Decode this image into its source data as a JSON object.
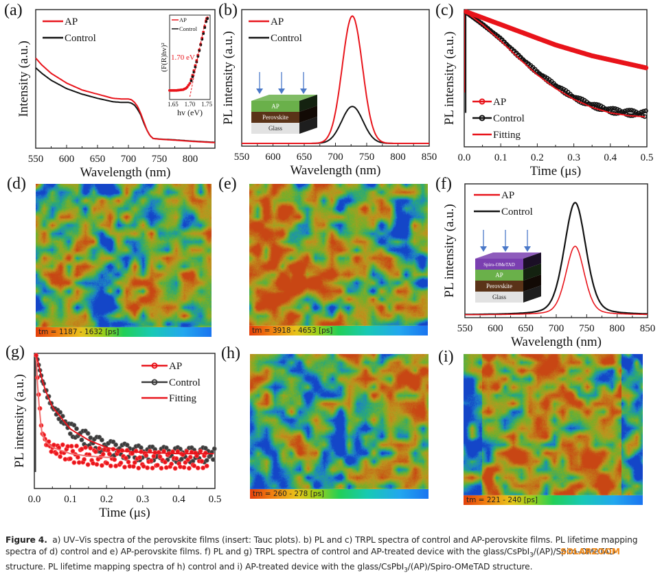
{
  "figure": {
    "number_label": "Figure 4.",
    "caption": [
      {
        "t": "a) UV–Vis spectra of the perovskite films (insert: Tauc plots). b) PL and c) TRPL spectra of control and AP-perovskite films. PL lifetime mapping "
      },
      {
        "t": "spectra of d) control and e) AP-perovskite films. f) PL and g) TRPL spectra of control and AP-treated device with the glass/CsPbI"
      },
      {
        "t": "structure. PL lifetime mapping spectra of h) control and i) AP-treated device with the glass/CsPbI"
      }
    ],
    "caption_line1": "a) UV–Vis spectra of the perovskite films (insert: Tauc plots). b) PL and c) TRPL spectra of control and AP-perovskite films. PL lifetime mapping",
    "caption_line2a": "spectra of d) control and e) AP-perovskite films. f) PL and g) TRPL spectra of control and AP-treated device with the glass/CsPbI",
    "caption_line2b": "/(AP)/Spiro-OMeTAD",
    "caption_line3a": "structure. PL lifetime mapping spectra of h) control and i) AP-treated device with the glass/CsPbI",
    "caption_line3b": "/(AP)/Spiro-OMeTAD structure.",
    "subscript": "3",
    "watermark": "SOLARZOOM"
  },
  "panel_labels": [
    "(a)",
    "(b)",
    "(c)",
    "(d)",
    "(e)",
    "(f)",
    "(g)",
    "(h)",
    "(i)"
  ],
  "colors": {
    "ap": "#e8141b",
    "control": "#111111",
    "control_g": "#3a3a3a",
    "fit": "#e8141b",
    "arrow": "#4a78c8"
  },
  "maps": {
    "d": {
      "label": "tm = 1187 - 1632 [ps]"
    },
    "e": {
      "label": "tm = 3918 - 4653 [ps]"
    },
    "h": {
      "label": "tm = 260 - 278 [ps]"
    },
    "i": {
      "label": "tm = 221 - 240 [ps]"
    }
  },
  "chart_data": [
    {
      "id": "a",
      "type": "line",
      "title": "",
      "xlabel": "Wavelength (nm)",
      "ylabel": "Intensity (a.u.)",
      "xlim": [
        550,
        840
      ],
      "ylim": [
        0,
        1
      ],
      "xticks": [
        550,
        600,
        650,
        700,
        750,
        800
      ],
      "legend": [
        "AP",
        "Control"
      ],
      "legend_position": "top-left",
      "x": [
        550,
        560,
        575,
        600,
        625,
        650,
        675,
        690,
        700,
        705,
        710,
        715,
        720,
        725,
        730,
        735,
        740,
        750,
        775,
        800,
        825,
        840
      ],
      "series": [
        {
          "name": "AP",
          "values": [
            0.65,
            0.6,
            0.54,
            0.47,
            0.42,
            0.39,
            0.36,
            0.355,
            0.355,
            0.35,
            0.33,
            0.3,
            0.25,
            0.19,
            0.13,
            0.09,
            0.07,
            0.065,
            0.058,
            0.05,
            0.044,
            0.04
          ]
        },
        {
          "name": "Control",
          "values": [
            0.58,
            0.54,
            0.49,
            0.43,
            0.39,
            0.36,
            0.335,
            0.33,
            0.33,
            0.325,
            0.31,
            0.28,
            0.24,
            0.18,
            0.13,
            0.09,
            0.07,
            0.066,
            0.06,
            0.052,
            0.046,
            0.042
          ]
        }
      ],
      "inset": {
        "xlabel": "hv (eV)",
        "ylabel": "(F(R)hv)^2",
        "xlim": [
          1.64,
          1.76
        ],
        "xticks": [
          1.65,
          1.7,
          1.75
        ],
        "annotation": "1.70 eV",
        "legend": [
          "AP",
          "Control"
        ],
        "x": [
          1.64,
          1.66,
          1.68,
          1.69,
          1.7,
          1.71,
          1.72,
          1.73,
          1.74,
          1.75
        ],
        "series": [
          {
            "name": "AP",
            "values": [
              0.08,
              0.08,
              0.09,
              0.11,
              0.17,
              0.3,
              0.46,
              0.63,
              0.82,
              1.0
            ]
          },
          {
            "name": "Control",
            "values": [
              null,
              null,
              null,
              null,
              0.15,
              0.28,
              0.44,
              0.62,
              0.8,
              0.99
            ]
          }
        ],
        "fit_line": {
          "x": [
            1.7,
            1.755
          ],
          "y": [
            0.0,
            1.05
          ]
        }
      }
    },
    {
      "id": "b",
      "type": "line",
      "title": "",
      "xlabel": "Wavelength (nm)",
      "ylabel": "PL intensity (a.u.)",
      "xlim": [
        550,
        850
      ],
      "ylim": [
        0,
        1.05
      ],
      "xticks": [
        550,
        600,
        650,
        700,
        750,
        800,
        850
      ],
      "legend": [
        "AP",
        "Control"
      ],
      "legend_position": "top-left",
      "peak_nm": 727,
      "series": [
        {
          "name": "AP",
          "peak": 1.0,
          "fwhm_nm": 38
        },
        {
          "name": "Control",
          "peak": 0.29,
          "fwhm_nm": 40
        }
      ],
      "inset_layers": [
        "AP",
        "Perovskite",
        "Glass"
      ]
    },
    {
      "id": "c",
      "type": "scatter",
      "title": "",
      "xlabel": "Time (μs)",
      "ylabel": "PL intensity (a.u.)",
      "xlim": [
        0,
        0.5
      ],
      "ylim": [
        0,
        1
      ],
      "xticks": [
        0.0,
        0.1,
        0.2,
        0.3,
        0.4,
        0.5
      ],
      "legend": [
        "AP",
        "Control",
        "Fitting"
      ],
      "legend_position": "bottom-left",
      "x": [
        0.0,
        0.05,
        0.1,
        0.15,
        0.2,
        0.25,
        0.3,
        0.35,
        0.4,
        0.45,
        0.5
      ],
      "series": [
        {
          "name": "AP",
          "values": [
            1.0,
            0.95,
            0.9,
            0.85,
            0.8,
            0.75,
            0.71,
            0.67,
            0.64,
            0.61,
            0.58
          ]
        },
        {
          "name": "Control",
          "values": [
            1.0,
            0.9,
            0.79,
            0.66,
            0.54,
            0.44,
            0.35,
            0.29,
            0.25,
            0.23,
            0.22
          ]
        },
        {
          "name": "Fitting",
          "values": [
            1.0,
            0.9,
            0.78,
            0.65,
            0.53,
            0.43,
            0.35,
            0.29,
            0.25,
            0.23,
            0.22
          ]
        }
      ]
    },
    {
      "id": "f",
      "type": "line",
      "title": "",
      "xlabel": "Wavelength (nm)",
      "ylabel": "PL intensity (a.u.)",
      "xlim": [
        550,
        850
      ],
      "ylim": [
        0,
        1.05
      ],
      "xticks": [
        550,
        600,
        650,
        700,
        750,
        800,
        850
      ],
      "legend": [
        "AP",
        "Control"
      ],
      "legend_position": "top-left",
      "peak_nm": 731,
      "series": [
        {
          "name": "AP",
          "peak": 0.55,
          "fwhm_nm": 36
        },
        {
          "name": "Control",
          "peak": 0.9,
          "fwhm_nm": 42
        }
      ],
      "inset_layers": [
        "Spiro-OMeTAD",
        "AP",
        "Perovskite",
        "Glass"
      ]
    },
    {
      "id": "g",
      "type": "scatter",
      "title": "",
      "xlabel": "Time (μs)",
      "ylabel": "PL intensity (a.u.)",
      "xlim": [
        0,
        0.5
      ],
      "ylim": [
        0,
        1
      ],
      "xticks": [
        0.0,
        0.1,
        0.2,
        0.3,
        0.4,
        0.5
      ],
      "legend": [
        "AP",
        "Control",
        "Fitting"
      ],
      "legend_position": "top-right",
      "x": [
        0.005,
        0.01,
        0.02,
        0.03,
        0.05,
        0.1,
        0.15,
        0.2,
        0.25,
        0.3,
        0.4,
        0.5
      ],
      "series": [
        {
          "name": "AP",
          "values": [
            1.0,
            0.75,
            0.4,
            0.3,
            0.24,
            0.2,
            0.18,
            0.17,
            0.16,
            0.15,
            0.15,
            0.15
          ]
        },
        {
          "name": "Control",
          "values": [
            1.0,
            0.95,
            0.82,
            0.72,
            0.58,
            0.4,
            0.31,
            0.25,
            0.22,
            0.2,
            0.19,
            0.19
          ]
        },
        {
          "name": "Fitting (AP)",
          "values": [
            1.0,
            0.7,
            0.38,
            0.3,
            0.25,
            0.2,
            0.18,
            0.17,
            0.17,
            0.17,
            0.17,
            0.17
          ]
        },
        {
          "name": "Fitting (Control)",
          "values": [
            1.0,
            0.95,
            0.82,
            0.72,
            0.58,
            0.4,
            0.31,
            0.25,
            0.22,
            0.21,
            0.2,
            0.2
          ]
        }
      ]
    }
  ]
}
